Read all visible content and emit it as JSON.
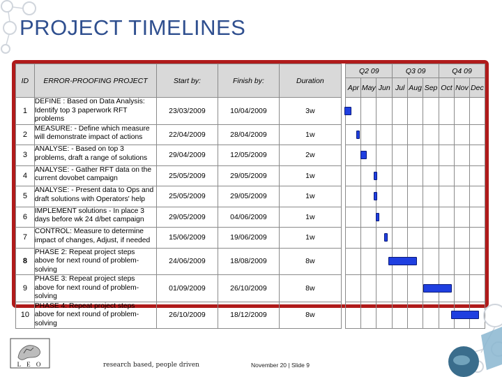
{
  "slide": {
    "title": "PROJECT TIMELINES",
    "tagline": "research based, people driven",
    "footer": "November 20 | Slide 9",
    "logo_letters": "L E O"
  },
  "colors": {
    "title": "#2f4f8f",
    "frame": "#b01b1b",
    "bar": "#1f3fe0",
    "header_bg": "#d9d9d9"
  },
  "table": {
    "headers": {
      "id": "ID",
      "project": "ERROR-PROOFING PROJECT",
      "start": "Start by:",
      "finish": "Finish by:",
      "duration": "Duration"
    },
    "quarters": [
      "Q2 09",
      "Q3 09",
      "Q4 09"
    ],
    "months": [
      "Apr",
      "May",
      "Jun",
      "Jul",
      "Aug",
      "Sep",
      "Oct",
      "Nov",
      "Dec"
    ],
    "rows": [
      {
        "id": "1",
        "project": "DEFINE :    Based on Data Analysis: Identify top 3 paperwork RFT problems",
        "start": "23/03/2009",
        "finish": "10/04/2009",
        "duration": "3w",
        "bar": [
          -0.3,
          0.35
        ]
      },
      {
        "id": "2",
        "project": "MEASURE:  - Define which measure will demonstrate impact of actions",
        "start": "22/04/2009",
        "finish": "28/04/2009",
        "duration": "1w",
        "bar": [
          0.7,
          0.9
        ]
      },
      {
        "id": "3",
        "project": "ANALYSE:  - Based on top 3 problems, draft a range of solutions",
        "start": "29/04/2009",
        "finish": "12/05/2009",
        "duration": "2w",
        "bar": [
          0.95,
          1.35
        ]
      },
      {
        "id": "4",
        "project": "ANALYSE: - Gather RFT data on the current dovobet campaign",
        "start": "25/05/2009",
        "finish": "29/05/2009",
        "duration": "1w",
        "bar": [
          1.8,
          1.95
        ]
      },
      {
        "id": "5",
        "project": "ANALYSE: - Present data to Ops and draft solutions with Operators' help",
        "start": "25/05/2009",
        "finish": "29/05/2009",
        "duration": "1w",
        "bar": [
          1.8,
          1.95
        ]
      },
      {
        "id": "6",
        "project": "IMPLEMENT solutions  -  In place 3 days before wk 24 d/bet campaign",
        "start": "29/05/2009",
        "finish": "04/06/2009",
        "duration": "1w",
        "bar": [
          1.93,
          2.12
        ]
      },
      {
        "id": "7",
        "project": "CONTROL:  Measure to determine impact of changes, Adjust, if needed",
        "start": "15/06/2009",
        "finish": "19/06/2009",
        "duration": "1w",
        "bar": [
          2.48,
          2.62
        ]
      },
      {
        "id": "8",
        "project": "PHASE 2: Repeat project steps above for next round of problem-solving",
        "start": "24/06/2009",
        "finish": "18/08/2009",
        "duration": "8w",
        "bar": [
          2.75,
          4.6
        ],
        "bold_id": true
      },
      {
        "id": "9",
        "project": "PHASE 3: Repeat project steps above for next round of problem-solving",
        "start": "01/09/2009",
        "finish": "26/10/2009",
        "duration": "8w",
        "bar": [
          5.0,
          6.85
        ]
      },
      {
        "id": "10",
        "project": "PHASE 4: Repeat project steps above for next round of problem-solving",
        "start": "26/10/2009",
        "finish": "18/12/2009",
        "duration": "8w",
        "bar": [
          6.8,
          8.6
        ]
      }
    ]
  }
}
